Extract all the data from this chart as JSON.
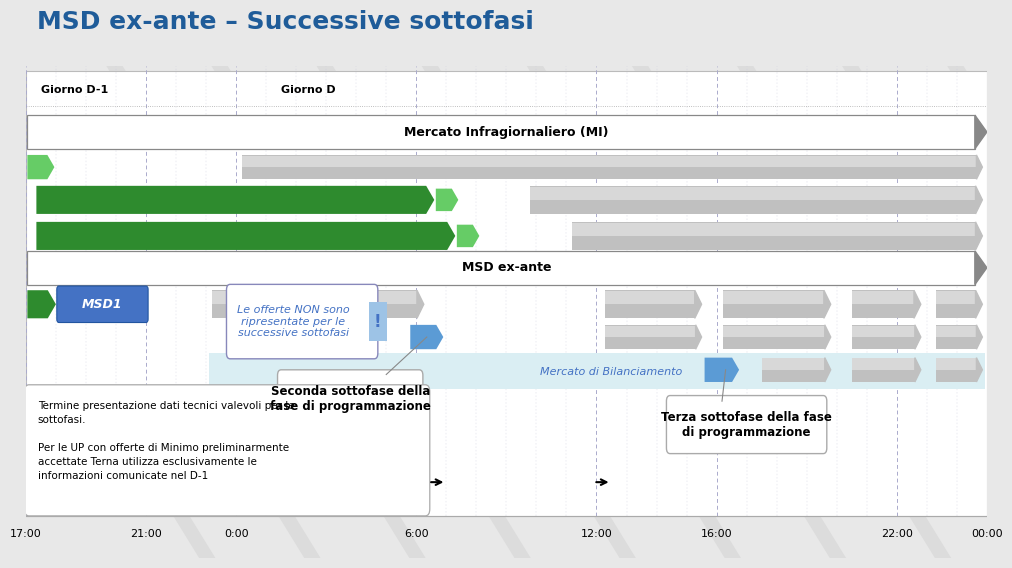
{
  "title": "MSD ex-ante – Successive sottofasi",
  "title_color": "#1F5C99",
  "title_fontsize": 18,
  "bg_color": "#E8E8E8",
  "x_ticks": [
    "17:00",
    "21:00",
    "0:00",
    "6:00",
    "12:00",
    "16:00",
    "22:00",
    "00:00"
  ],
  "x_tick_positions": [
    0,
    4,
    7,
    13,
    19,
    23,
    29,
    32
  ],
  "colors": {
    "green_dark": "#2E8B2E",
    "green_light": "#66CC66",
    "gray_bar": "#B8B8B8",
    "gray_bar_dark": "#909090",
    "blue_button": "#4472C4",
    "blue_arrow": "#5B9BD5",
    "blue_bg": "#DAEEF3",
    "blue_text": "#4472C4",
    "white": "#FFFFFF",
    "black": "#000000",
    "grid_major": "#AAAACC",
    "grid_minor": "#CCCCDD"
  },
  "watermark_color": "#DCDCDC",
  "note_text": "Termine presentazione dati tecnici valevoli per le\nsottofasi.\n\nPer le UP con offerte di Minimo preliminarmente\naccettate Terna utilizza esclusivamente le\ninformazioni comunicate nel D-1",
  "callout1_text": "Le offerte NON sono\nripresentate per le\nsuccessive sottofasi",
  "callout2_text": "Seconda sottofase della\nfase di programmazione",
  "callout3_text": "Terza sottofase della fase\ndi programmazione",
  "MSD1_label": "MSD1",
  "MI_label": "Mercato Infragiornaliero (MI)",
  "MSD_label": "MSD ex-ante",
  "MB_label": "Mercato di Bilanciamento",
  "day_minus1": "Giorno D-1",
  "day_d": "Giorno D"
}
